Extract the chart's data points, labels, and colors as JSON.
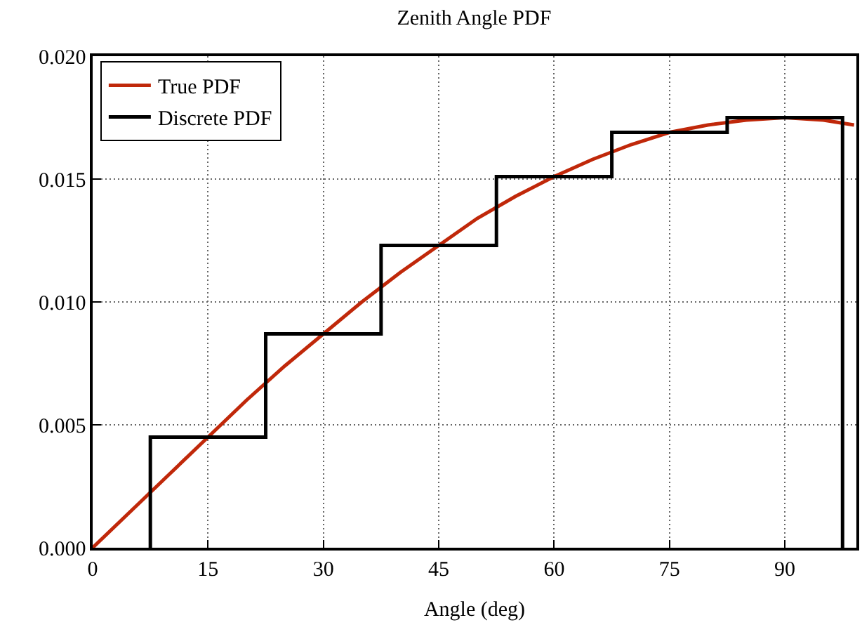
{
  "chart_data": {
    "type": "line",
    "title": "Zenith Angle PDF",
    "xlabel": "Angle (deg)",
    "xlim": [
      0,
      99.3
    ],
    "xticks": [
      0,
      15,
      30,
      45,
      60,
      75,
      90
    ],
    "ylim": [
      0,
      0.02
    ],
    "yticks": [
      {
        "value": 0,
        "label": "0.000"
      },
      {
        "value": 0.005,
        "label": "0.005"
      },
      {
        "value": 0.01,
        "label": "0.010"
      },
      {
        "value": 0.015,
        "label": "0.015"
      },
      {
        "value": 0.02,
        "label": "0.020"
      }
    ],
    "grid": true,
    "legend": "top left",
    "marker": "none",
    "line_style": "solid",
    "series": [
      {
        "name": "True PDF",
        "color": "#c0280a",
        "x": [
          0,
          5,
          10,
          15,
          20,
          25,
          30,
          35,
          40,
          45,
          50,
          55,
          60,
          65,
          70,
          75,
          80,
          85,
          90,
          95,
          99
        ],
        "values": [
          0,
          0.0015,
          0.003,
          0.0045,
          0.006,
          0.0074,
          0.0087,
          0.01,
          0.0112,
          0.0123,
          0.0134,
          0.0143,
          0.0151,
          0.0158,
          0.0164,
          0.0169,
          0.0172,
          0.0174,
          0.0175,
          0.0174,
          0.0172
        ]
      },
      {
        "name": "Discrete PDF",
        "type": "step",
        "color": "#000000",
        "x": [
          7.5,
          7.5,
          22.5,
          37.5,
          52.5,
          67.5,
          82.5,
          97.5
        ],
        "values": [
          0,
          0.0045,
          0.0087,
          0.0123,
          0.0151,
          0.0169,
          0.0175,
          0
        ]
      }
    ]
  }
}
